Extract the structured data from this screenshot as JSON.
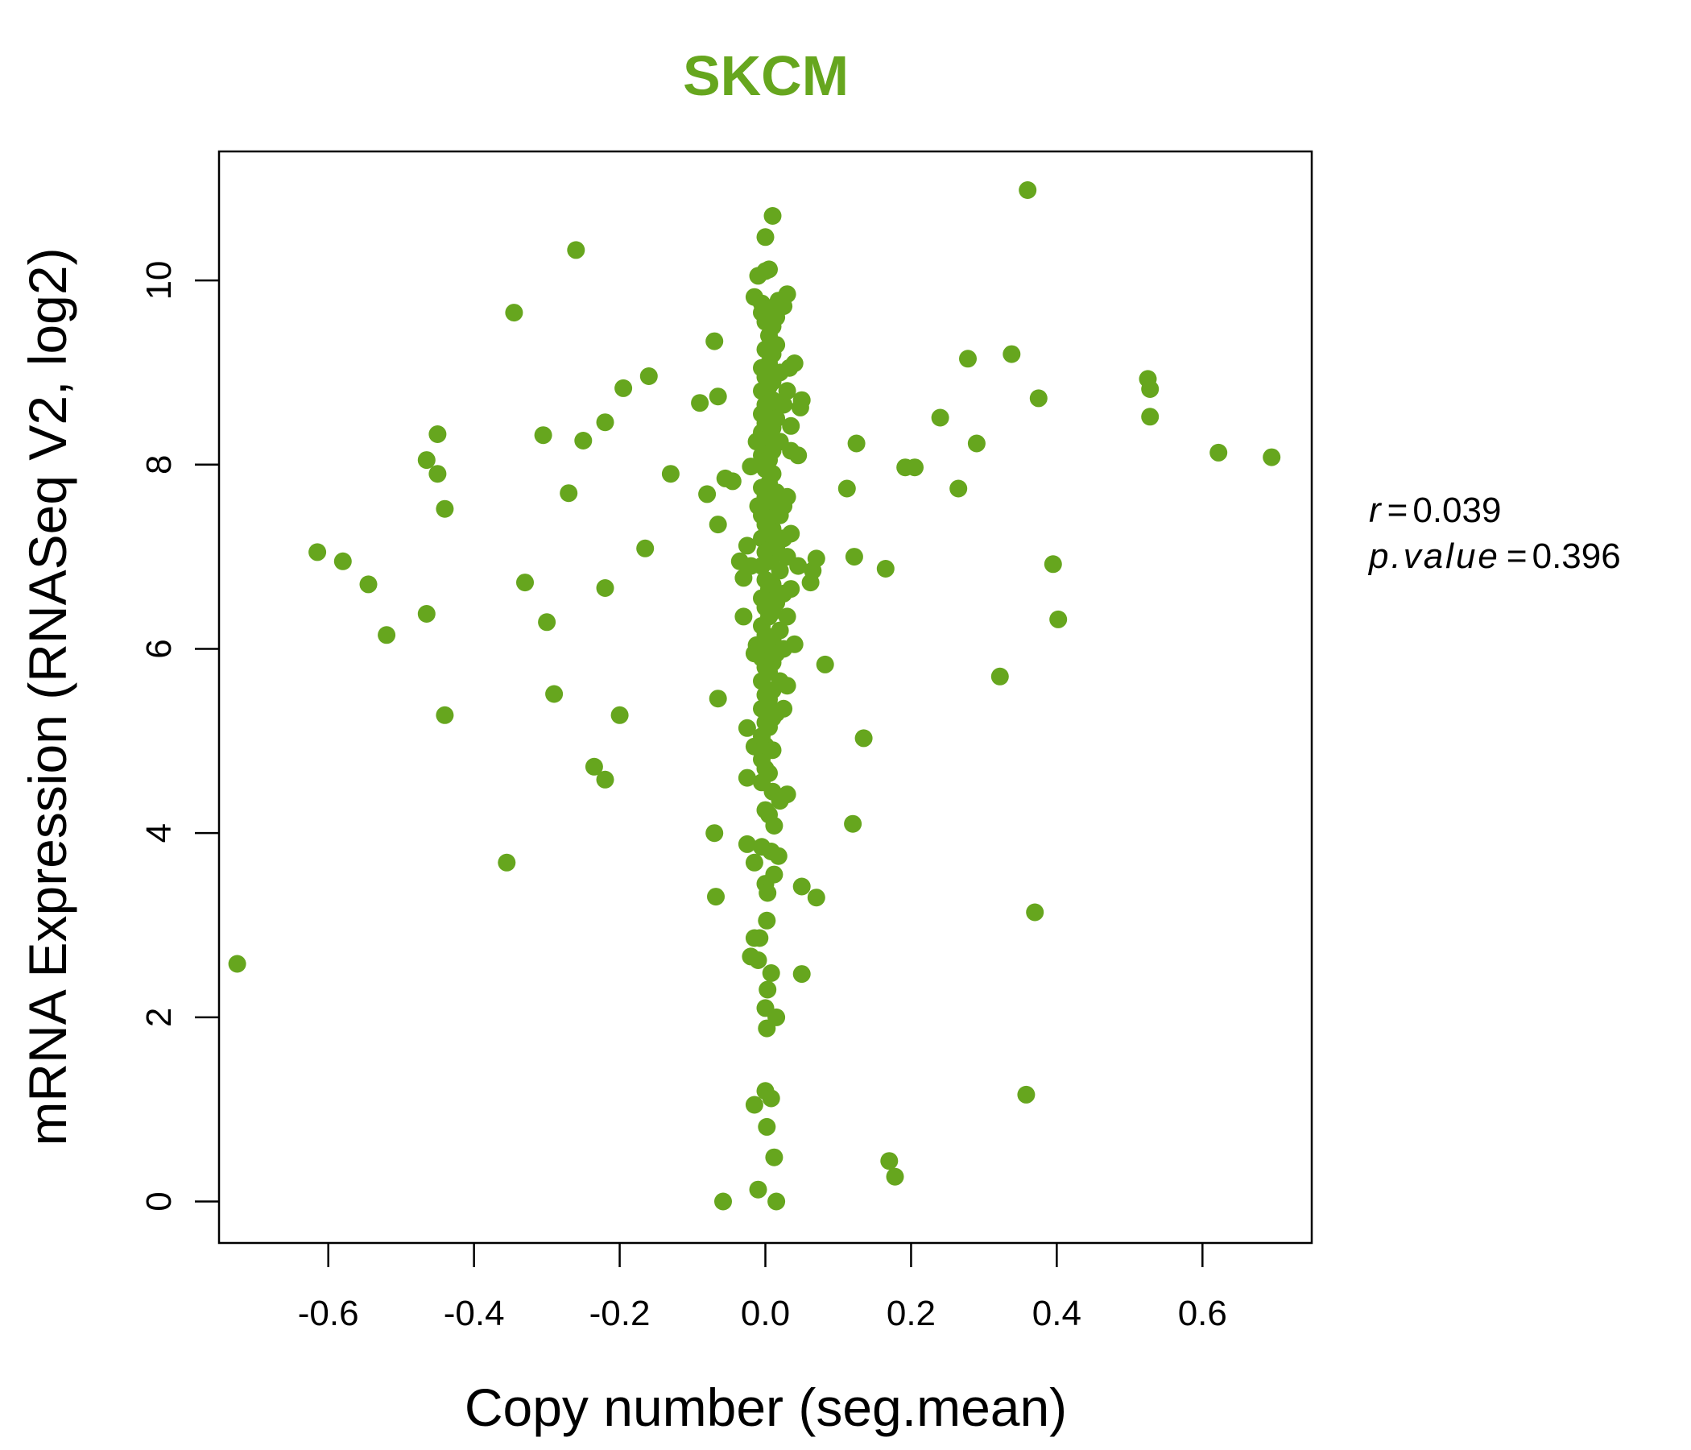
{
  "chart_data": {
    "type": "scatter",
    "title": "SKCM",
    "xlabel": "Copy number (seg.mean)",
    "ylabel": "mRNA Expression (RNASeq V2, log2)",
    "xlim": [
      -0.75,
      0.75
    ],
    "ylim": [
      -0.45,
      11.4
    ],
    "xticks": [
      "-0.6",
      "-0.4",
      "-0.2",
      "0.0",
      "0.2",
      "0.4",
      "0.6"
    ],
    "yticks": [
      "0",
      "2",
      "4",
      "6",
      "8",
      "10"
    ],
    "grid": false,
    "legend": "none",
    "point_color": "#66A61E",
    "stats": {
      "r_label": "r",
      "r_value": "0.039",
      "p_label": "p.value",
      "p_value": "0.396"
    },
    "points": [
      [
        -0.725,
        2.58
      ],
      [
        -0.615,
        7.05
      ],
      [
        -0.58,
        6.95
      ],
      [
        -0.545,
        6.7
      ],
      [
        -0.52,
        6.15
      ],
      [
        -0.465,
        8.05
      ],
      [
        -0.465,
        6.38
      ],
      [
        -0.45,
        8.33
      ],
      [
        -0.45,
        7.9
      ],
      [
        -0.44,
        7.52
      ],
      [
        -0.44,
        5.28
      ],
      [
        -0.345,
        9.65
      ],
      [
        -0.355,
        3.68
      ],
      [
        -0.33,
        6.72
      ],
      [
        -0.305,
        8.32
      ],
      [
        -0.3,
        6.29
      ],
      [
        -0.29,
        5.51
      ],
      [
        -0.27,
        7.69
      ],
      [
        -0.26,
        10.33
      ],
      [
        -0.25,
        8.26
      ],
      [
        -0.235,
        4.72
      ],
      [
        -0.22,
        8.46
      ],
      [
        -0.22,
        6.66
      ],
      [
        -0.22,
        4.58
      ],
      [
        -0.2,
        5.28
      ],
      [
        -0.195,
        8.83
      ],
      [
        -0.165,
        7.09
      ],
      [
        -0.16,
        8.96
      ],
      [
        -0.13,
        7.9
      ],
      [
        -0.09,
        8.67
      ],
      [
        -0.08,
        7.68
      ],
      [
        -0.07,
        9.34
      ],
      [
        -0.065,
        8.74
      ],
      [
        -0.065,
        7.35
      ],
      [
        -0.065,
        5.46
      ],
      [
        -0.07,
        4.0
      ],
      [
        -0.068,
        3.31
      ],
      [
        -0.058,
        0.0
      ],
      [
        -0.055,
        7.85
      ],
      [
        -0.045,
        7.82
      ],
      [
        -0.035,
        6.95
      ],
      [
        -0.03,
        6.77
      ],
      [
        -0.03,
        6.35
      ],
      [
        -0.025,
        7.12
      ],
      [
        -0.02,
        7.98
      ],
      [
        -0.02,
        6.9
      ],
      [
        -0.025,
        5.14
      ],
      [
        -0.025,
        4.6
      ],
      [
        -0.025,
        3.88
      ],
      [
        -0.02,
        2.66
      ],
      [
        -0.015,
        9.82
      ],
      [
        -0.01,
        10.05
      ],
      [
        -0.012,
        8.25
      ],
      [
        -0.01,
        7.55
      ],
      [
        -0.012,
        6.04
      ],
      [
        -0.015,
        5.95
      ],
      [
        -0.015,
        4.94
      ],
      [
        -0.015,
        3.68
      ],
      [
        -0.015,
        2.86
      ],
      [
        -0.015,
        1.05
      ],
      [
        -0.01,
        0.13
      ],
      [
        -0.008,
        2.86
      ],
      [
        -0.01,
        2.62
      ],
      [
        -0.005,
        9.75
      ],
      [
        -0.005,
        9.65
      ],
      [
        -0.005,
        9.05
      ],
      [
        -0.005,
        8.8
      ],
      [
        -0.005,
        8.55
      ],
      [
        -0.005,
        8.35
      ],
      [
        -0.005,
        8.1
      ],
      [
        -0.005,
        7.75
      ],
      [
        -0.005,
        7.45
      ],
      [
        -0.005,
        7.2
      ],
      [
        -0.005,
        6.9
      ],
      [
        -0.005,
        6.55
      ],
      [
        -0.005,
        6.25
      ],
      [
        -0.005,
        5.9
      ],
      [
        -0.005,
        5.65
      ],
      [
        -0.005,
        5.35
      ],
      [
        -0.005,
        5.05
      ],
      [
        -0.005,
        4.8
      ],
      [
        -0.005,
        4.55
      ],
      [
        -0.005,
        3.85
      ],
      [
        0.0,
        10.47
      ],
      [
        0.0,
        10.1
      ],
      [
        0.0,
        9.55
      ],
      [
        0.0,
        9.25
      ],
      [
        0.0,
        8.95
      ],
      [
        0.0,
        8.65
      ],
      [
        0.0,
        8.45
      ],
      [
        0.0,
        8.2
      ],
      [
        0.0,
        7.95
      ],
      [
        0.0,
        7.65
      ],
      [
        0.0,
        7.35
      ],
      [
        0.0,
        7.05
      ],
      [
        0.0,
        6.75
      ],
      [
        0.0,
        6.45
      ],
      [
        0.0,
        6.15
      ],
      [
        0.0,
        5.8
      ],
      [
        0.0,
        5.5
      ],
      [
        0.0,
        5.2
      ],
      [
        0.0,
        4.95
      ],
      [
        0.0,
        4.7
      ],
      [
        0.0,
        4.25
      ],
      [
        0.0,
        3.45
      ],
      [
        0.0,
        2.1
      ],
      [
        0.0,
        1.2
      ],
      [
        0.002,
        3.05
      ],
      [
        0.002,
        1.88
      ],
      [
        0.002,
        0.81
      ],
      [
        0.003,
        3.35
      ],
      [
        0.003,
        2.3
      ],
      [
        0.005,
        10.12
      ],
      [
        0.005,
        9.7
      ],
      [
        0.005,
        9.4
      ],
      [
        0.005,
        9.1
      ],
      [
        0.005,
        8.85
      ],
      [
        0.005,
        8.6
      ],
      [
        0.005,
        8.3
      ],
      [
        0.005,
        8.05
      ],
      [
        0.005,
        7.8
      ],
      [
        0.005,
        7.5
      ],
      [
        0.005,
        7.25
      ],
      [
        0.005,
        6.95
      ],
      [
        0.005,
        6.65
      ],
      [
        0.005,
        6.35
      ],
      [
        0.005,
        6.05
      ],
      [
        0.005,
        5.75
      ],
      [
        0.005,
        5.45
      ],
      [
        0.005,
        5.15
      ],
      [
        0.005,
        4.65
      ],
      [
        0.005,
        4.2
      ],
      [
        0.008,
        3.8
      ],
      [
        0.008,
        2.48
      ],
      [
        0.008,
        1.12
      ],
      [
        0.01,
        10.7
      ],
      [
        0.01,
        9.5
      ],
      [
        0.01,
        9.2
      ],
      [
        0.01,
        8.9
      ],
      [
        0.01,
        8.7
      ],
      [
        0.01,
        8.4
      ],
      [
        0.01,
        8.15
      ],
      [
        0.01,
        7.9
      ],
      [
        0.01,
        7.6
      ],
      [
        0.01,
        7.3
      ],
      [
        0.01,
        7.0
      ],
      [
        0.01,
        6.7
      ],
      [
        0.01,
        6.4
      ],
      [
        0.01,
        6.1
      ],
      [
        0.01,
        5.85
      ],
      [
        0.01,
        5.55
      ],
      [
        0.01,
        5.25
      ],
      [
        0.01,
        4.9
      ],
      [
        0.01,
        4.45
      ],
      [
        0.012,
        4.08
      ],
      [
        0.012,
        3.55
      ],
      [
        0.012,
        0.48
      ],
      [
        0.015,
        9.6
      ],
      [
        0.015,
        9.3
      ],
      [
        0.015,
        8.5
      ],
      [
        0.015,
        7.7
      ],
      [
        0.015,
        7.1
      ],
      [
        0.015,
        6.5
      ],
      [
        0.015,
        5.95
      ],
      [
        0.015,
        5.3
      ],
      [
        0.015,
        2.0
      ],
      [
        0.015,
        0.0
      ],
      [
        0.018,
        9.78
      ],
      [
        0.018,
        3.75
      ],
      [
        0.02,
        9.0
      ],
      [
        0.02,
        8.25
      ],
      [
        0.02,
        7.45
      ],
      [
        0.02,
        6.85
      ],
      [
        0.02,
        6.2
      ],
      [
        0.02,
        5.65
      ],
      [
        0.02,
        4.35
      ],
      [
        0.025,
        9.72
      ],
      [
        0.025,
        8.65
      ],
      [
        0.025,
        7.55
      ],
      [
        0.025,
        7.2
      ],
      [
        0.025,
        6.6
      ],
      [
        0.025,
        6.0
      ],
      [
        0.025,
        5.35
      ],
      [
        0.03,
        9.85
      ],
      [
        0.03,
        8.8
      ],
      [
        0.03,
        7.65
      ],
      [
        0.03,
        7.0
      ],
      [
        0.03,
        6.35
      ],
      [
        0.03,
        5.6
      ],
      [
        0.03,
        4.42
      ],
      [
        0.033,
        9.05
      ],
      [
        0.035,
        8.42
      ],
      [
        0.035,
        8.15
      ],
      [
        0.035,
        7.25
      ],
      [
        0.035,
        6.65
      ],
      [
        0.04,
        9.1
      ],
      [
        0.04,
        6.05
      ],
      [
        0.045,
        8.1
      ],
      [
        0.045,
        6.9
      ],
      [
        0.048,
        8.62
      ],
      [
        0.05,
        8.7
      ],
      [
        0.05,
        3.42
      ],
      [
        0.05,
        2.47
      ],
      [
        0.062,
        6.72
      ],
      [
        0.065,
        6.85
      ],
      [
        0.07,
        6.98
      ],
      [
        0.07,
        3.3
      ],
      [
        0.082,
        5.83
      ],
      [
        0.112,
        7.74
      ],
      [
        0.12,
        4.1
      ],
      [
        0.122,
        7.0
      ],
      [
        0.125,
        8.23
      ],
      [
        0.135,
        5.03
      ],
      [
        0.165,
        6.87
      ],
      [
        0.17,
        0.44
      ],
      [
        0.178,
        0.27
      ],
      [
        0.192,
        7.97
      ],
      [
        0.205,
        7.97
      ],
      [
        0.24,
        8.51
      ],
      [
        0.265,
        7.74
      ],
      [
        0.278,
        9.15
      ],
      [
        0.29,
        8.23
      ],
      [
        0.322,
        5.7
      ],
      [
        0.338,
        9.2
      ],
      [
        0.358,
        1.16
      ],
      [
        0.36,
        10.98
      ],
      [
        0.37,
        3.14
      ],
      [
        0.375,
        8.72
      ],
      [
        0.395,
        6.92
      ],
      [
        0.402,
        6.32
      ],
      [
        0.525,
        8.93
      ],
      [
        0.528,
        8.82
      ],
      [
        0.528,
        8.52
      ],
      [
        0.622,
        8.13
      ],
      [
        0.695,
        8.08
      ]
    ]
  }
}
